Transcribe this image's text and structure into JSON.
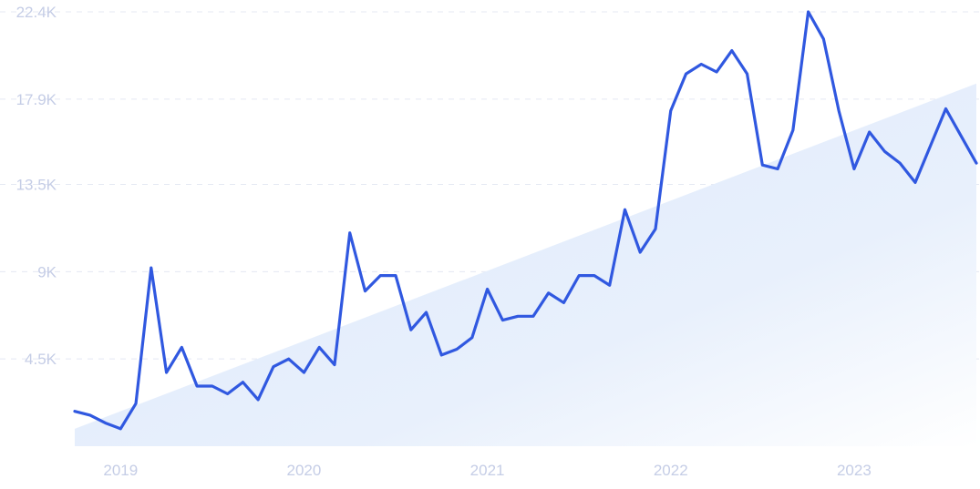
{
  "chart_data": {
    "type": "line",
    "title": "",
    "xlabel": "",
    "ylabel": "",
    "y_ticks": [
      "4.5K",
      "9K",
      "13.5K",
      "17.9K",
      "22.4K"
    ],
    "y_tick_values": [
      4500,
      9000,
      13500,
      17900,
      22400
    ],
    "x_ticks": [
      "2019",
      "2020",
      "2021",
      "2022",
      "2023"
    ],
    "ylim": [
      0,
      22400
    ],
    "xlim": [
      "2018-10",
      "2023-09"
    ],
    "grid": "horizontal dashed",
    "legend": "none",
    "colors": {
      "line": "#3058e0",
      "trend_fill": "#dde9fb",
      "tick_text": "#c5cde6",
      "grid": "#e4e8f3"
    },
    "trend": {
      "start": 900,
      "end": 18700
    },
    "series": [
      {
        "x": [
          "2018-10",
          "2018-11",
          "2018-12",
          "2019-01",
          "2019-02",
          "2019-03",
          "2019-04",
          "2019-05",
          "2019-06",
          "2019-07",
          "2019-08",
          "2019-09",
          "2019-10",
          "2019-11",
          "2019-12",
          "2020-01",
          "2020-02",
          "2020-03",
          "2020-04",
          "2020-05",
          "2020-06",
          "2020-07",
          "2020-08",
          "2020-09",
          "2020-10",
          "2020-11",
          "2020-12",
          "2021-01",
          "2021-02",
          "2021-03",
          "2021-04",
          "2021-05",
          "2021-06",
          "2021-07",
          "2021-08",
          "2021-09",
          "2021-10",
          "2021-11",
          "2021-12",
          "2022-01",
          "2022-02",
          "2022-03",
          "2022-04",
          "2022-05",
          "2022-06",
          "2022-07",
          "2022-08",
          "2022-09",
          "2022-10",
          "2022-11",
          "2022-12",
          "2023-01",
          "2023-02",
          "2023-03",
          "2023-04",
          "2023-05",
          "2023-06",
          "2023-07",
          "2023-08",
          "2023-09"
        ],
        "values": [
          1800,
          1600,
          1200,
          900,
          2200,
          9200,
          3800,
          5100,
          3100,
          3100,
          2700,
          3300,
          2400,
          4100,
          4500,
          3800,
          5100,
          4200,
          11000,
          8000,
          8800,
          8800,
          6000,
          6900,
          4700,
          5000,
          5600,
          8100,
          6500,
          6700,
          6700,
          7900,
          7400,
          8800,
          8800,
          8300,
          12200,
          10000,
          11200,
          17300,
          19200,
          19700,
          19300,
          20400,
          19200,
          14500,
          14300,
          16300,
          22400,
          21000,
          17300,
          14300,
          16200,
          15200,
          14600,
          13600,
          15500,
          17400,
          16000,
          14600
        ]
      }
    ]
  }
}
